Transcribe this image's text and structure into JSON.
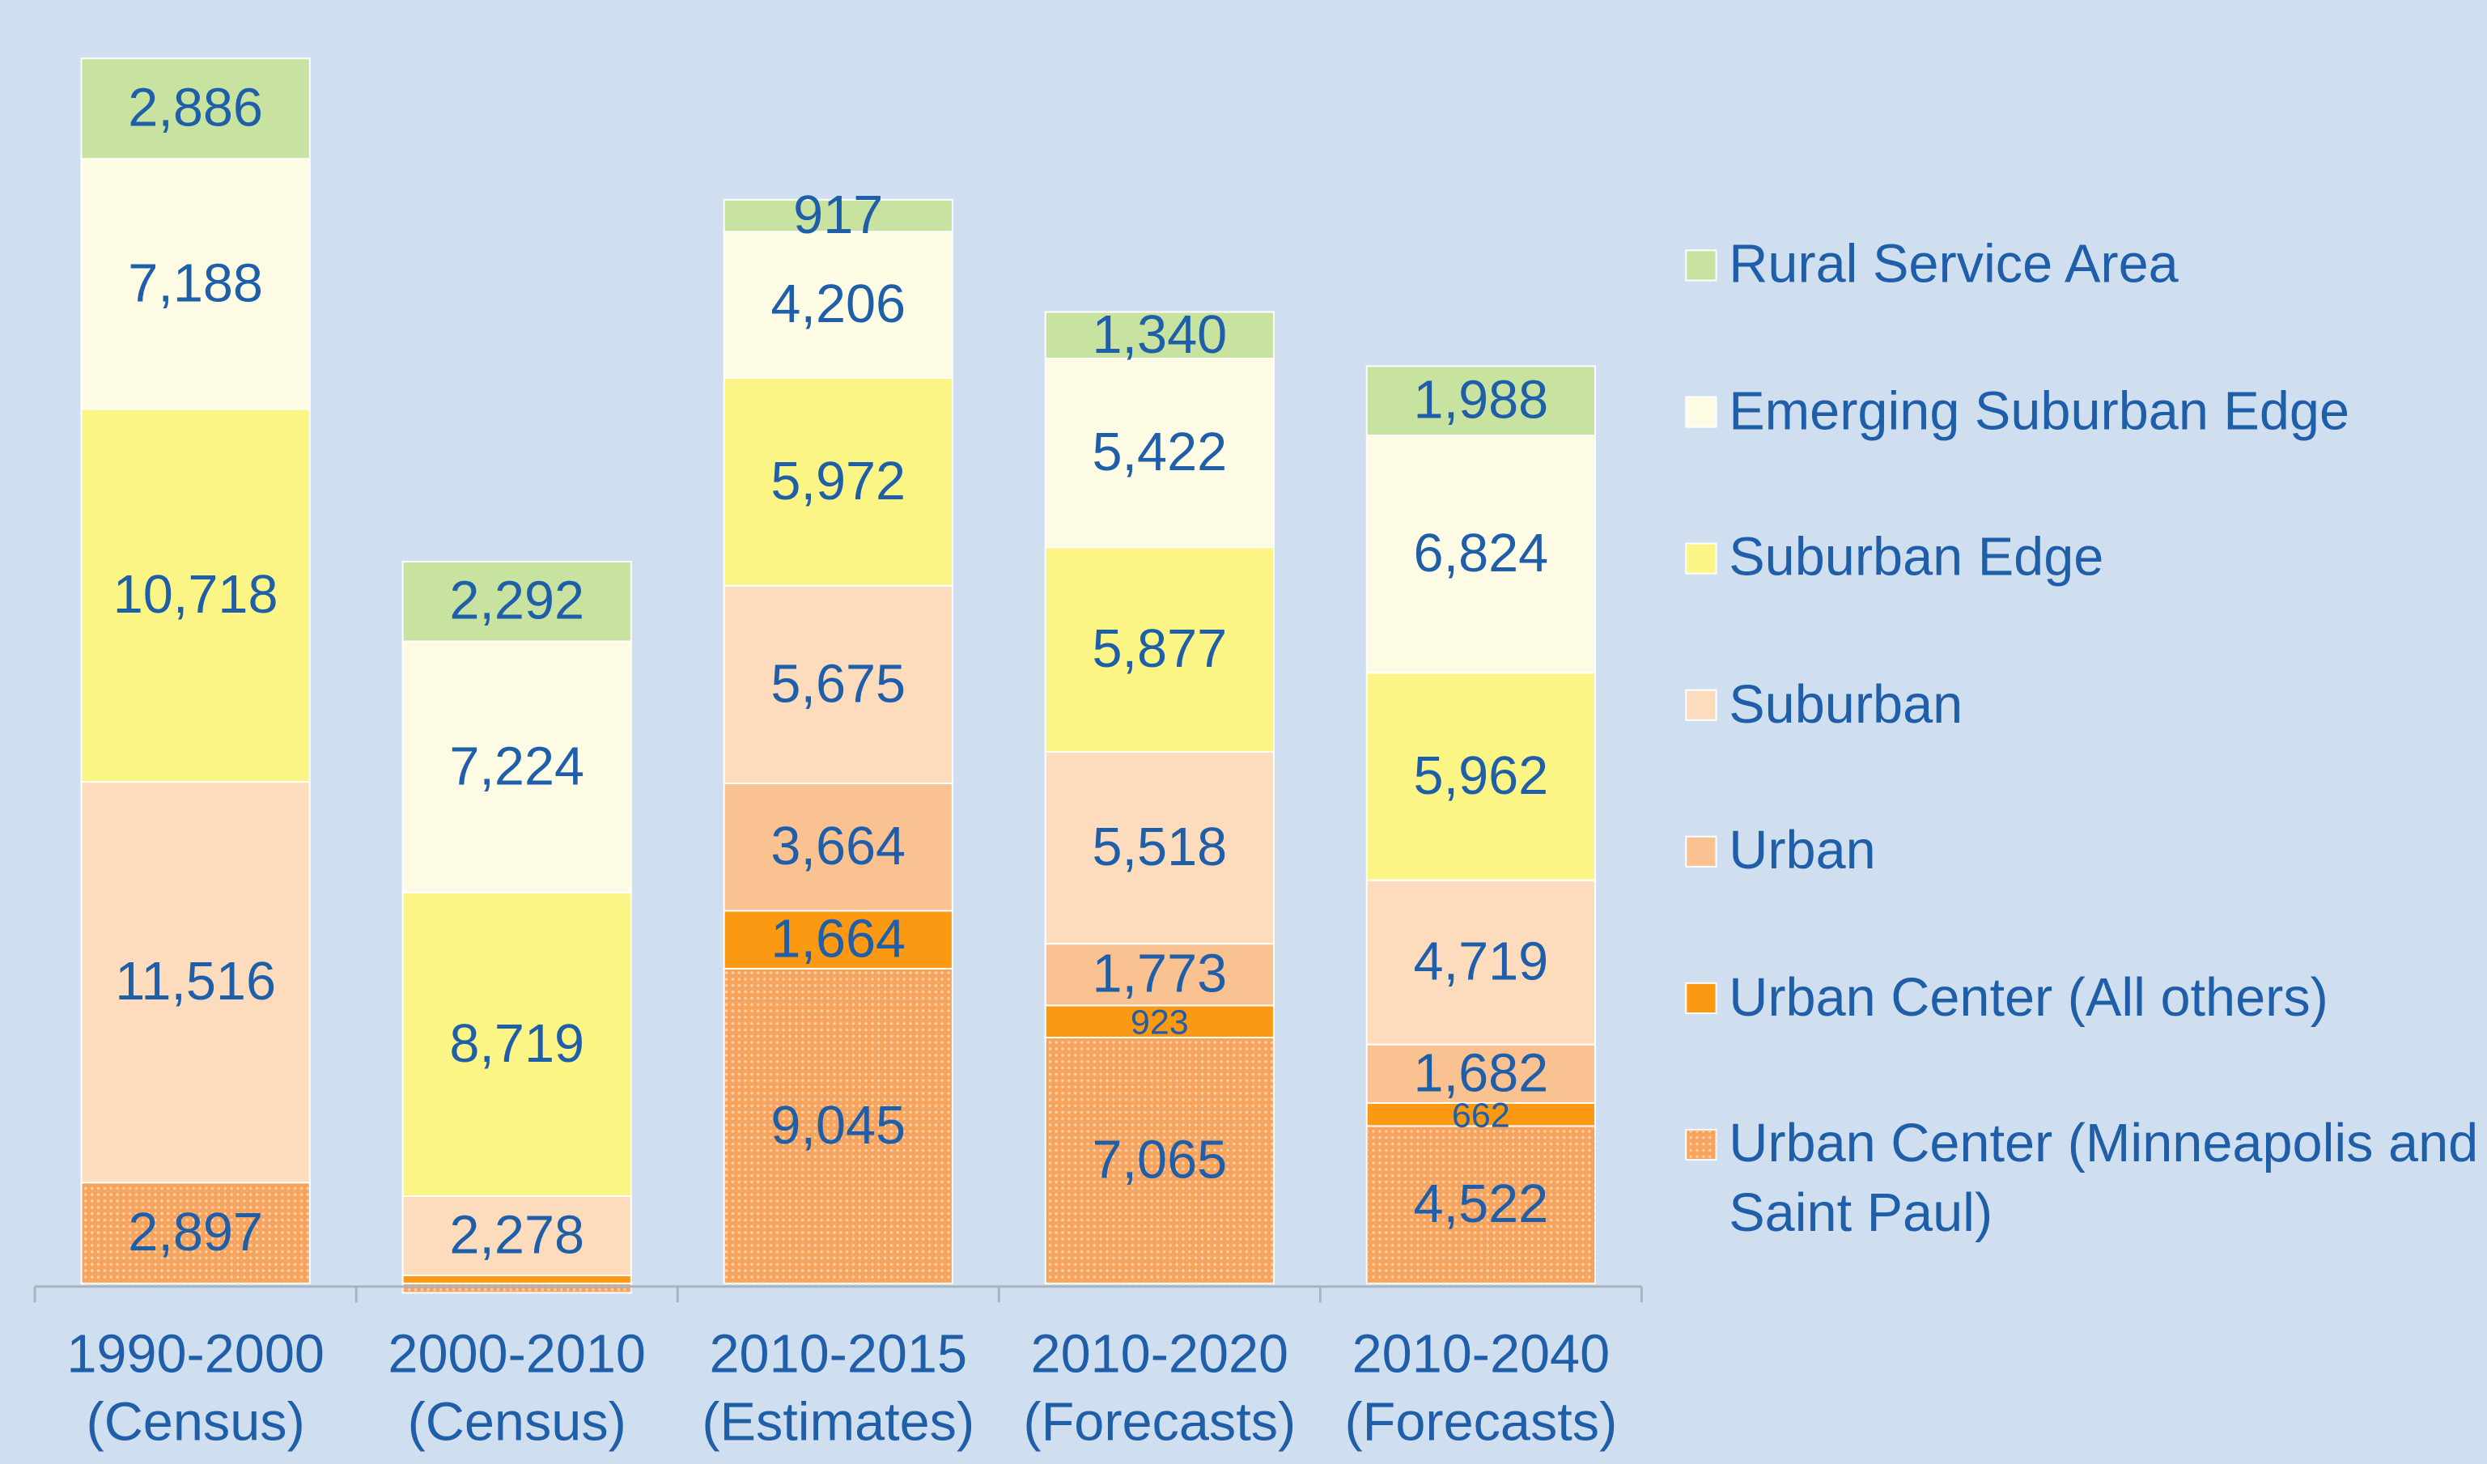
{
  "chart_data": {
    "type": "stacked_bar",
    "categories": [
      [
        "1990-2000",
        "(Census)"
      ],
      [
        "2000-2010",
        "(Census)"
      ],
      [
        "2010-2015",
        "(Estimates)"
      ],
      [
        "2010-2020",
        "(Forecasts)"
      ],
      [
        "2010-2040",
        "(Forecasts)"
      ]
    ],
    "ylim": [
      0,
      36000
    ],
    "series": [
      {
        "name": "Urban Center (Minneapolis and Saint Paul)",
        "color": "#f6a35e",
        "pattern": "dotted",
        "values": [
          2897,
          -270,
          9045,
          7065,
          4522
        ],
        "value_labels": [
          "2,897",
          null,
          "9,045",
          "7,065",
          "4,522"
        ]
      },
      {
        "name": "Urban Center (All others)",
        "color": "#fb9a12",
        "values": [
          null,
          230,
          1664,
          923,
          662
        ],
        "value_labels": [
          null,
          null,
          "1,664",
          "923",
          "662"
        ]
      },
      {
        "name": "Urban",
        "color": "#fac291",
        "values": [
          null,
          null,
          3664,
          1773,
          1682
        ],
        "value_labels": [
          null,
          null,
          "3,664",
          "1,773",
          "1,682"
        ]
      },
      {
        "name": "Suburban",
        "color": "#fcdcbd",
        "values": [
          11516,
          2278,
          5675,
          5518,
          4719
        ],
        "value_labels": [
          "11,516",
          "2,278",
          "5,675",
          "5,518",
          "4,719"
        ]
      },
      {
        "name": "Suburban Edge",
        "color": "#fbf585",
        "values": [
          10718,
          8719,
          5972,
          5877,
          5962
        ],
        "value_labels": [
          "10,718",
          "8,719",
          "5,972",
          "5,877",
          "5,962"
        ]
      },
      {
        "name": "Emerging Suburban Edge",
        "color": "#fdfbe3",
        "values": [
          7188,
          7224,
          4206,
          5422,
          6824
        ],
        "value_labels": [
          "7,188",
          "7,224",
          "4,206",
          "5,422",
          "6,824"
        ]
      },
      {
        "name": "Rural Service Area",
        "color": "#c8e2a0",
        "values": [
          2886,
          2292,
          917,
          1340,
          1988
        ],
        "value_labels": [
          "2,886",
          "2,292",
          "917",
          "1,340",
          "1,988"
        ]
      }
    ]
  }
}
